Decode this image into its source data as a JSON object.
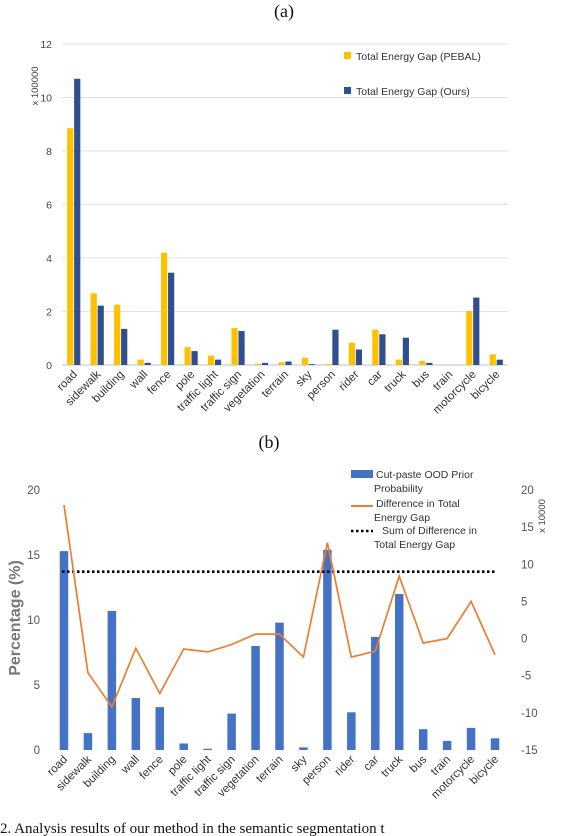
{
  "figure": {
    "panel_a_label": "(a)",
    "panel_b_label": "(b)",
    "caption": "2. Analysis results of our method in the semantic segmentation t"
  },
  "chart_data": [
    {
      "type": "bar",
      "panel": "(a)",
      "categories": [
        "road",
        "sidewalk",
        "building",
        "wall",
        "fence",
        "pole",
        "traffic light",
        "traffic sign",
        "vegetation",
        "terrain",
        "sky",
        "person",
        "rider",
        "car",
        "truck",
        "bus",
        "train",
        "motorcycle",
        "bicycle"
      ],
      "y_multiplier": "x 100000",
      "ylim": [
        0,
        12
      ],
      "yticks": [
        0,
        2,
        4,
        6,
        8,
        10,
        12
      ],
      "ytick_labels": [
        "0",
        "2",
        "4",
        "6",
        "8",
        "10",
        "12"
      ],
      "grid": true,
      "legend_position": "top-right",
      "colors": {
        "pebal": "#ffc000",
        "ours": "#2f4f8f",
        "grid": "#e2e2e2"
      },
      "series": [
        {
          "name": "Total Energy Gap (PEBAL)",
          "values": [
            8.85,
            2.68,
            2.25,
            0.2,
            4.2,
            0.67,
            0.35,
            1.38,
            0.05,
            0.1,
            0.27,
            0.03,
            0.83,
            1.32,
            0.2,
            0.15,
            0.0,
            2.02,
            0.4
          ]
        },
        {
          "name": "Total Energy Gap (Ours)",
          "values": [
            10.7,
            2.22,
            1.35,
            0.08,
            3.45,
            0.52,
            0.2,
            1.27,
            0.08,
            0.13,
            0.03,
            1.32,
            0.58,
            1.15,
            1.02,
            0.08,
            0.0,
            2.52,
            0.2
          ]
        }
      ]
    },
    {
      "type": "bar",
      "panel": "(b)",
      "categories": [
        "road",
        "sidewalk",
        "building",
        "wall",
        "fence",
        "pole",
        "traffic light",
        "traffic sign",
        "vegetation",
        "terrain",
        "sky",
        "person",
        "rider",
        "car",
        "truck",
        "bus",
        "train",
        "motorcycle",
        "bicycle"
      ],
      "ylabel": "Percentage (%)",
      "ylim": [
        0,
        20
      ],
      "yticks": [
        0,
        5,
        10,
        15,
        20
      ],
      "ytick_labels": [
        "0",
        "5",
        "10",
        "15",
        "20"
      ],
      "y2_multiplier": "x 10000",
      "y2lim": [
        -15,
        20
      ],
      "y2ticks": [
        -15,
        -10,
        -5,
        0,
        5,
        10,
        15,
        20
      ],
      "y2tick_labels": [
        "-15",
        "-10",
        "-5",
        "0",
        "5",
        "10",
        "15",
        "20"
      ],
      "grid": false,
      "legend_position": "top-right",
      "colors": {
        "prior": "#4472c4",
        "diff": "#ed7d31",
        "sum": "#000000"
      },
      "series": [
        {
          "name": "Cut-paste OOD Prior Probability",
          "axis": "left",
          "kind": "bar",
          "values": [
            15.3,
            1.3,
            10.7,
            4.0,
            3.3,
            0.5,
            0.1,
            2.8,
            8.0,
            9.8,
            0.2,
            15.4,
            2.9,
            8.7,
            12.0,
            1.6,
            0.7,
            1.7,
            0.9
          ]
        },
        {
          "name": "Difference in Total Energy Gap",
          "axis": "right",
          "kind": "line",
          "values": [
            18.0,
            -4.6,
            -9.2,
            -1.3,
            -7.4,
            -1.4,
            -1.8,
            -0.8,
            0.6,
            0.6,
            -2.5,
            12.9,
            -2.5,
            -1.7,
            8.4,
            -0.6,
            0.0,
            5.0,
            -2.2
          ]
        },
        {
          "name": "Sum of Difference in Total Energy Gap",
          "axis": "right",
          "kind": "hline",
          "value": 9.0
        }
      ]
    }
  ]
}
